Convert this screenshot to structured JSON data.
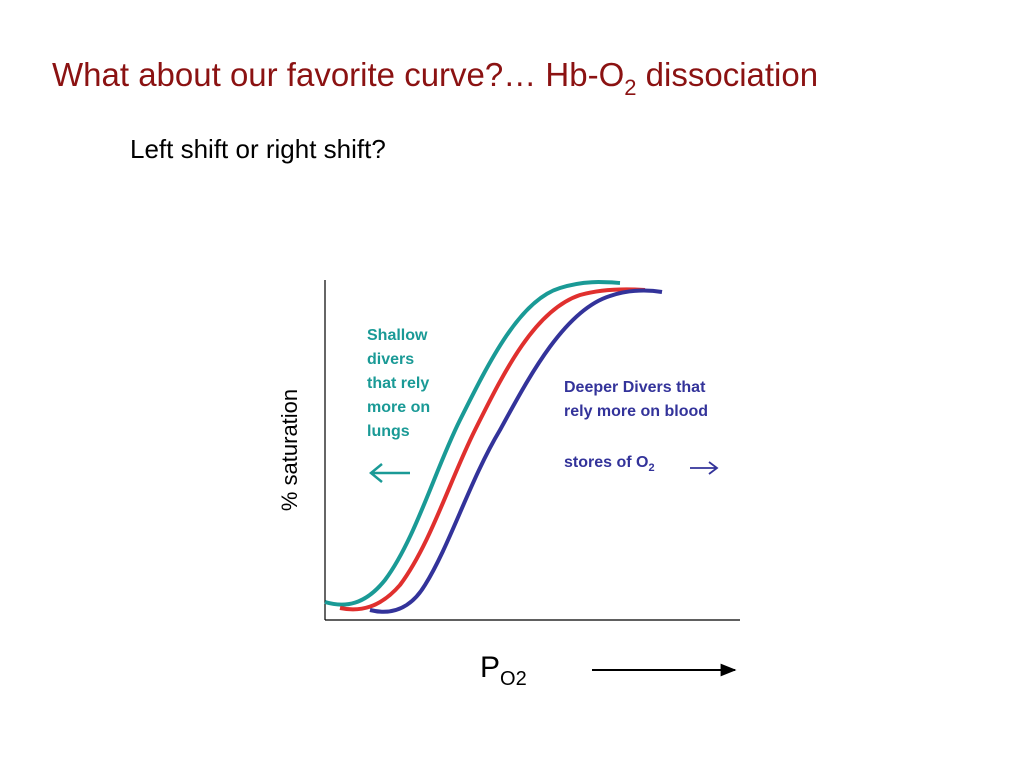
{
  "title": {
    "text": "What about our favorite curve?… Hb-O",
    "subscript": "2",
    "rest": " dissociation"
  },
  "subtitle": "Left shift or right shift?",
  "diagram": {
    "y_label": "% saturation",
    "x_label": {
      "text": "P",
      "subscript": "O2"
    },
    "shallow_note": [
      "Shallow",
      "divers",
      "that rely",
      "more on",
      "lungs"
    ],
    "deep_note": {
      "lines": [
        "Deeper Divers that",
        "rely more on blood"
      ],
      "last": "stores of O",
      "subscript": "2"
    }
  }
}
